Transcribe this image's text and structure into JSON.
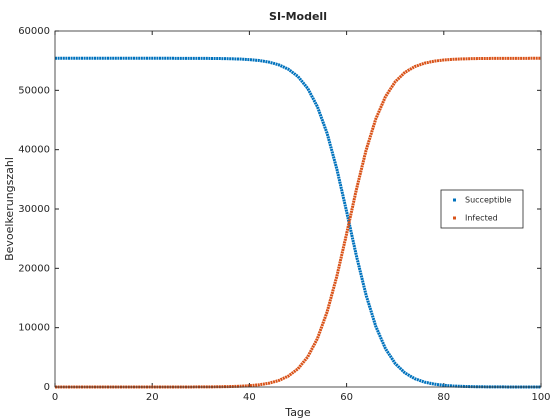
{
  "chart_data": {
    "type": "line",
    "title": "SI-Modell",
    "x_label": "Tage",
    "y_label": "Bevoelkerungszahl",
    "x": [
      0,
      2,
      4,
      6,
      8,
      10,
      12,
      14,
      16,
      18,
      20,
      22,
      24,
      26,
      28,
      30,
      32,
      34,
      36,
      38,
      40,
      42,
      44,
      46,
      48,
      50,
      52,
      54,
      56,
      58,
      60,
      62,
      64,
      66,
      68,
      70,
      72,
      74,
      76,
      78,
      80,
      82,
      84,
      86,
      88,
      90,
      92,
      94,
      96,
      98,
      100
    ],
    "series": [
      {
        "name": "Succeptible",
        "color": "#0072bd",
        "values": [
          55400,
          55400,
          55400,
          55400,
          55400,
          55400,
          55400,
          55400,
          55400,
          55399,
          55399,
          55398,
          55397,
          55395,
          55391,
          55385,
          55375,
          55357,
          55326,
          55273,
          55182,
          55027,
          54763,
          54318,
          53567,
          52327,
          50327,
          47229,
          42723,
          36709,
          29573,
          22172,
          15516,
          10230,
          6460,
          3956,
          2375,
          1409,
          831,
          487,
          285,
          166,
          97,
          57,
          33,
          19,
          11,
          6,
          4,
          2,
          1
        ]
      },
      {
        "name": "Infected",
        "color": "#d95319",
        "values": [
          0,
          0,
          0,
          0,
          0,
          0,
          0,
          0,
          0,
          1,
          1,
          2,
          3,
          5,
          9,
          15,
          25,
          43,
          74,
          127,
          218,
          373,
          637,
          1082,
          1833,
          3073,
          5073,
          8171,
          12677,
          18691,
          25827,
          33228,
          39884,
          45170,
          48940,
          51444,
          53025,
          53991,
          54569,
          54913,
          55115,
          55234,
          55303,
          55343,
          55367,
          55381,
          55389,
          55394,
          55396,
          55398,
          55399
        ]
      }
    ],
    "xlim": [
      0,
      100
    ],
    "xticks": [
      0,
      20,
      40,
      60,
      80,
      100
    ],
    "ylim": [
      0,
      60000
    ],
    "yticks": [
      0,
      10000,
      20000,
      30000,
      40000,
      50000,
      60000
    ],
    "grid": false,
    "legend": "right"
  }
}
